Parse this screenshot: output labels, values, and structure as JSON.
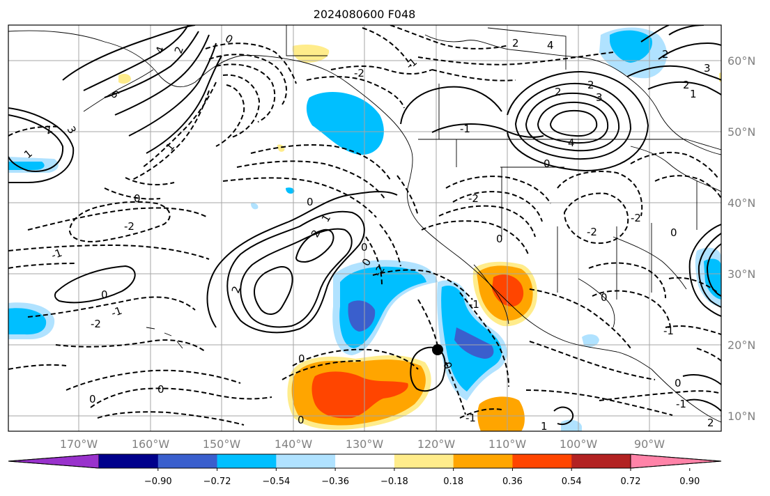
{
  "title": "2024080600 F048",
  "map": {
    "lon_labels": [
      "170°W",
      "160°W",
      "150°W",
      "140°W",
      "130°W",
      "120°W",
      "110°W",
      "100°W",
      "90°W"
    ],
    "lat_labels": [
      "60°N",
      "50°N",
      "40°N",
      "30°N",
      "20°N",
      "10°N"
    ],
    "grid": true,
    "marker": "storm-center-dot"
  },
  "colorbar": {
    "colors": [
      "#9932cc",
      "#00008b",
      "#3a5fcd",
      "#00bfff",
      "#b0e2ff",
      "#ffffff",
      "#ffec8b",
      "#ffa500",
      "#ff4500",
      "#b22222",
      "#ff83a8"
    ],
    "tick_labels": [
      "−0.90",
      "−0.72",
      "−0.54",
      "−0.36",
      "−0.18",
      "0.18",
      "0.36",
      "0.54",
      "0.72",
      "0.90"
    ],
    "extend": "both"
  },
  "contour_labels": [
    "-2",
    "-1",
    "0",
    "1",
    "2",
    "3",
    "4",
    "6"
  ]
}
